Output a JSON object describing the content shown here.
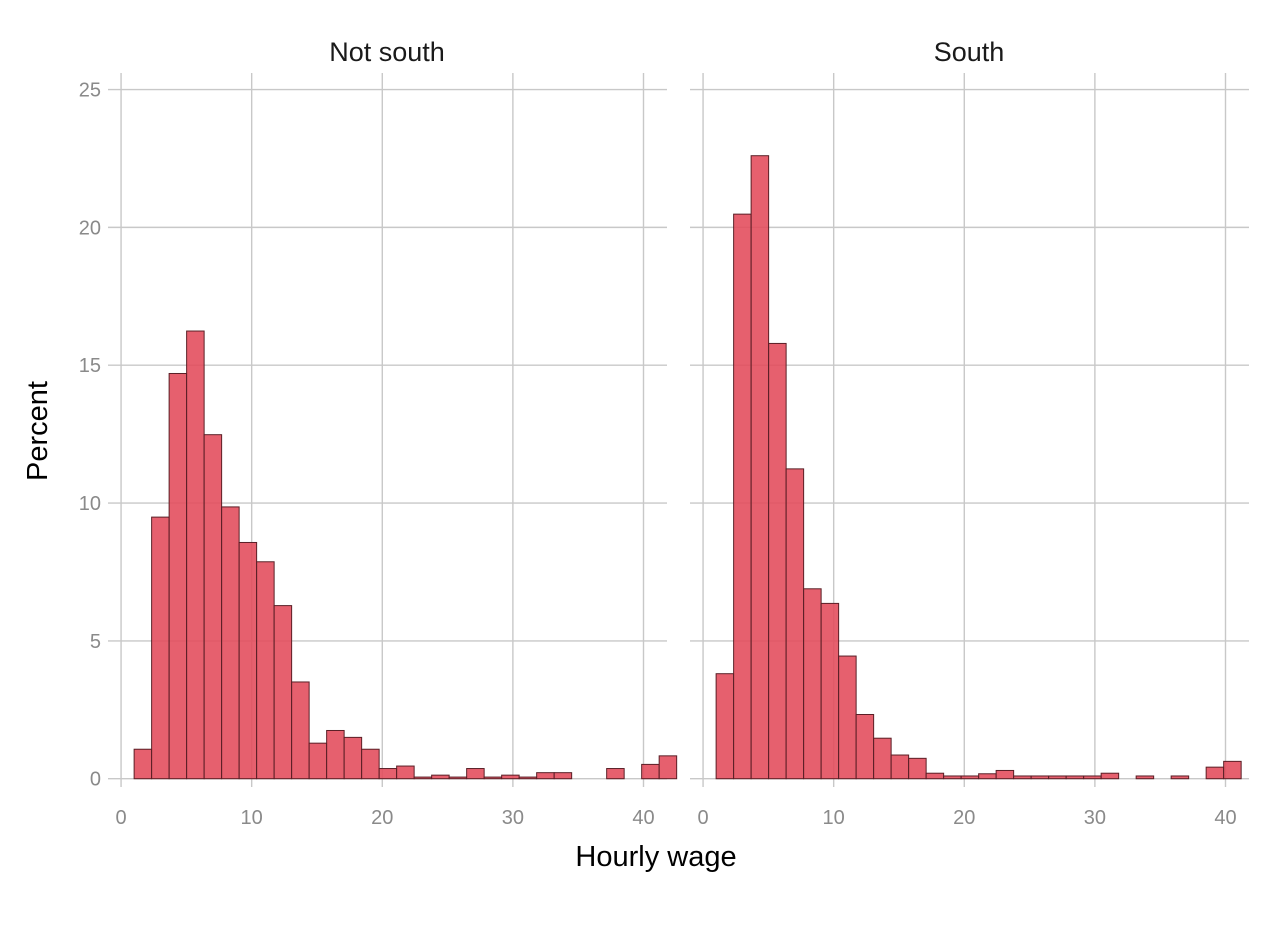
{
  "chart_data": {
    "type": "bar",
    "chart_kind": "faceted histogram",
    "xlabel": "Hourly wage",
    "ylabel": "Percent",
    "xlim": [
      -1,
      41.8
    ],
    "ylim": [
      -0.3,
      25.6
    ],
    "x_ticks": [
      0,
      10,
      20,
      30,
      40
    ],
    "y_ticks": [
      0,
      5,
      10,
      15,
      20,
      25
    ],
    "bin_width": 1.34,
    "grid": true,
    "legend": "none",
    "bar_color": "#e34a5a",
    "panels": [
      {
        "title": "Not south",
        "bins": [
          {
            "x": 1.67,
            "value": 1.07
          },
          {
            "x": 3.01,
            "value": 9.49
          },
          {
            "x": 4.35,
            "value": 14.7
          },
          {
            "x": 5.69,
            "value": 16.24
          },
          {
            "x": 7.03,
            "value": 12.48
          },
          {
            "x": 8.37,
            "value": 9.86
          },
          {
            "x": 9.71,
            "value": 8.57
          },
          {
            "x": 11.05,
            "value": 7.87
          },
          {
            "x": 12.39,
            "value": 6.28
          },
          {
            "x": 13.73,
            "value": 3.51
          },
          {
            "x": 15.07,
            "value": 1.29
          },
          {
            "x": 16.41,
            "value": 1.75
          },
          {
            "x": 17.75,
            "value": 1.5
          },
          {
            "x": 19.09,
            "value": 1.07
          },
          {
            "x": 20.43,
            "value": 0.37
          },
          {
            "x": 21.77,
            "value": 0.46
          },
          {
            "x": 23.11,
            "value": 0.06
          },
          {
            "x": 24.45,
            "value": 0.13
          },
          {
            "x": 25.79,
            "value": 0.06
          },
          {
            "x": 27.13,
            "value": 0.37
          },
          {
            "x": 28.47,
            "value": 0.06
          },
          {
            "x": 29.81,
            "value": 0.13
          },
          {
            "x": 31.15,
            "value": 0.06
          },
          {
            "x": 32.49,
            "value": 0.22
          },
          {
            "x": 33.83,
            "value": 0.22
          },
          {
            "x": 35.17,
            "value": 0.0
          },
          {
            "x": 36.51,
            "value": 0.0
          },
          {
            "x": 37.85,
            "value": 0.37
          },
          {
            "x": 39.19,
            "value": 0.0
          },
          {
            "x": 40.53,
            "value": 0.52
          },
          {
            "x": 41.87,
            "value": 0.83
          }
        ]
      },
      {
        "title": "South",
        "bins": [
          {
            "x": 1.67,
            "value": 3.81
          },
          {
            "x": 3.01,
            "value": 20.48
          },
          {
            "x": 4.35,
            "value": 22.6
          },
          {
            "x": 5.69,
            "value": 15.79
          },
          {
            "x": 7.03,
            "value": 11.24
          },
          {
            "x": 8.37,
            "value": 6.89
          },
          {
            "x": 9.71,
            "value": 6.36
          },
          {
            "x": 11.05,
            "value": 4.45
          },
          {
            "x": 12.39,
            "value": 2.33
          },
          {
            "x": 13.73,
            "value": 1.47
          },
          {
            "x": 15.07,
            "value": 0.86
          },
          {
            "x": 16.41,
            "value": 0.74
          },
          {
            "x": 17.75,
            "value": 0.2
          },
          {
            "x": 19.09,
            "value": 0.1
          },
          {
            "x": 20.43,
            "value": 0.1
          },
          {
            "x": 21.77,
            "value": 0.18
          },
          {
            "x": 23.11,
            "value": 0.3
          },
          {
            "x": 24.45,
            "value": 0.1
          },
          {
            "x": 25.79,
            "value": 0.1
          },
          {
            "x": 27.13,
            "value": 0.1
          },
          {
            "x": 28.47,
            "value": 0.1
          },
          {
            "x": 29.81,
            "value": 0.1
          },
          {
            "x": 31.15,
            "value": 0.2
          },
          {
            "x": 32.49,
            "value": 0.0
          },
          {
            "x": 33.83,
            "value": 0.1
          },
          {
            "x": 35.17,
            "value": 0.0
          },
          {
            "x": 36.51,
            "value": 0.1
          },
          {
            "x": 37.85,
            "value": 0.0
          },
          {
            "x": 39.19,
            "value": 0.42
          },
          {
            "x": 40.53,
            "value": 0.63
          }
        ]
      }
    ]
  }
}
